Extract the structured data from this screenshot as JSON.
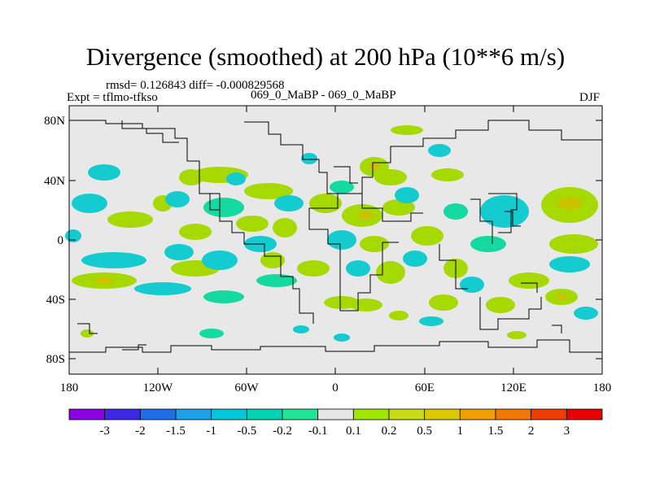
{
  "title": "Divergence (smoothed) at 200 hPa (10**6 m/s)",
  "stats": "rmsd= 0.126843 diff= -0.000829568",
  "experiment": "Expt = tflmo-tfkso",
  "case": "069_0_MaBP - 069_0_MaBP",
  "season": "DJF",
  "lat_labels": [
    "80N",
    "40N",
    "0",
    "40S",
    "80S"
  ],
  "lon_labels": [
    "180",
    "120W",
    "60W",
    "0",
    "60E",
    "120E",
    "180"
  ],
  "colorbar": {
    "colors": [
      "#8a00e0",
      "#3c28e6",
      "#1e6ee8",
      "#1ea0e8",
      "#00c8d8",
      "#00d2b4",
      "#1ee696",
      "#e6e6e6",
      "#a0e600",
      "#c8dc14",
      "#dcc800",
      "#f0a000",
      "#f07800",
      "#f03c00",
      "#e60000"
    ],
    "labels": [
      "-3",
      "-2",
      "-1.5",
      "-1",
      "-0.5",
      "-0.2",
      "-0.1",
      "0.1",
      "0.2",
      "0.5",
      "1",
      "1.5",
      "2",
      "3"
    ]
  },
  "field_colors": {
    "background": "#e8e8e8",
    "positive": "#a6d900",
    "positive_core": "#c9c200",
    "negative": "#14ccd0",
    "negative_light": "#14d9a0"
  }
}
